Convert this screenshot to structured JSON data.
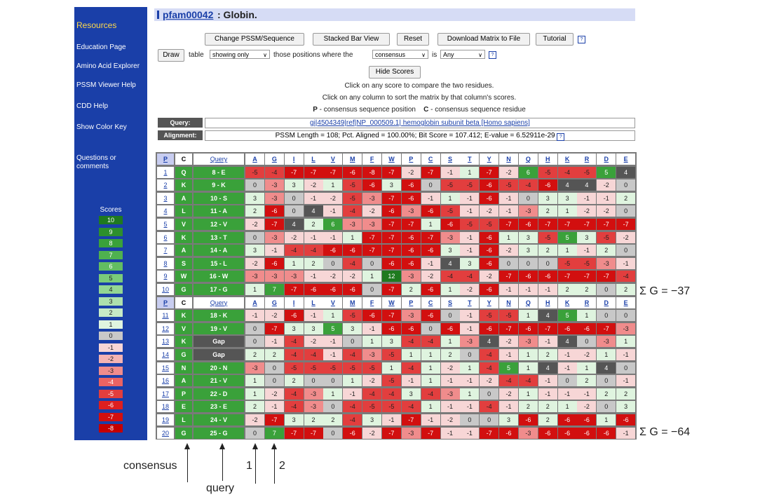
{
  "sidebar": {
    "resources": "Resources",
    "links": [
      "Education Page",
      "Amino Acid Explorer",
      "PSSM Viewer Help",
      "CDD Help",
      "Show Color Key"
    ],
    "questions": [
      "Questions or",
      "comments"
    ],
    "scores_title": "Scores",
    "scores": [
      "10",
      "9",
      "8",
      "7",
      "6",
      "5",
      "4",
      "3",
      "2",
      "1",
      "0",
      "-1",
      "-2",
      "-3",
      "-4",
      "-5",
      "-6",
      "-7",
      "-8"
    ],
    "score_colors": [
      "#1f7a1f",
      "#2d8f2d",
      "#3aa13a",
      "#4fb14f",
      "#62bd62",
      "#7acb7a",
      "#93d693",
      "#ade0ad",
      "#c6eac6",
      "#dff4df",
      "#c8c8c8",
      "#f7d6d6",
      "#f4b3b3",
      "#f08c8c",
      "#ea6363",
      "#e23e3e",
      "#dd1f1f",
      "#d20f0f",
      "#c40000"
    ]
  },
  "title": {
    "family": "pfam00042",
    "rest": ": Globin."
  },
  "toolbar": {
    "change_pssm": "Change PSSM/Sequence",
    "stacked": "Stacked Bar View",
    "reset": "Reset",
    "download": "Download Matrix to File",
    "tutorial": "Tutorial",
    "draw": "Draw",
    "table": "table",
    "showing": "showing only",
    "those_positions": "those positions where the",
    "consensus_sel": "consensus",
    "is": "is",
    "any": "Any",
    "hide_scores": "Hide Scores",
    "help_glyph": "?"
  },
  "info": {
    "line1": "Click on any score to compare the two residues.",
    "line2": "Click on any column to sort the matrix by that column's scores.",
    "p_key": "P",
    "p_text": " - consensus sequence position",
    "c_key": "C",
    "c_text": " - consensus sequence residue"
  },
  "query_row": {
    "label": "Query:",
    "link": "gi|4504349|ref|NP_000509.1| hemoglobin subunit beta [Homo sapiens]"
  },
  "alignment_row": {
    "label": "Alignment:",
    "text": "PSSM Length = 108; Pct. Aligned = 100.00%; Bit Score = 107.412; E-value = 6.52911e-29"
  },
  "matrix": {
    "p_label": "P",
    "c_label": "C",
    "query_label": "Query",
    "residues": [
      "A",
      "G",
      "I",
      "L",
      "V",
      "M",
      "F",
      "W",
      "P",
      "C",
      "S",
      "T",
      "Y",
      "N",
      "Q",
      "H",
      "K",
      "R",
      "D",
      "E"
    ],
    "rows": [
      {
        "pos": "1",
        "cons": "Q",
        "query": "8 - E",
        "scores": [
          -5,
          -4,
          -7,
          -7,
          -7,
          -6,
          -8,
          -7,
          -2,
          -7,
          -1,
          1,
          -7,
          -2,
          6,
          -5,
          -4,
          -5,
          5,
          4
        ]
      },
      {
        "pos": "2",
        "cons": "K",
        "query": "9 - K",
        "scores": [
          0,
          -3,
          3,
          -2,
          1,
          -5,
          -6,
          3,
          -6,
          0,
          -5,
          -5,
          -6,
          -5,
          -4,
          -6,
          4,
          4,
          -2,
          0
        ]
      },
      {
        "pos": "3",
        "cons": "A",
        "query": "10 - S",
        "scores": [
          3,
          -3,
          0,
          -1,
          -2,
          -5,
          -3,
          -7,
          -6,
          -1,
          1,
          -1,
          -6,
          -1,
          0,
          3,
          3,
          -1,
          -1,
          2
        ]
      },
      {
        "pos": "4",
        "cons": "L",
        "query": "11 - A",
        "scores": [
          2,
          -6,
          0,
          4,
          -1,
          -4,
          -2,
          -6,
          -3,
          -6,
          -5,
          -1,
          -2,
          -1,
          -3,
          2,
          1,
          -2,
          -2,
          0
        ]
      },
      {
        "pos": "5",
        "cons": "V",
        "query": "12 - V",
        "scores": [
          -2,
          -7,
          4,
          2,
          6,
          -3,
          -3,
          -7,
          -7,
          1,
          -6,
          -5,
          -5,
          -7,
          -6,
          -7,
          -7,
          -7,
          -7,
          -7
        ]
      },
      {
        "pos": "6",
        "cons": "K",
        "query": "13 - T",
        "scores": [
          0,
          -3,
          -2,
          -1,
          -1,
          1,
          -7,
          -7,
          -6,
          -7,
          -3,
          -1,
          -6,
          1,
          3,
          -5,
          5,
          3,
          -5,
          -2
        ]
      },
      {
        "pos": "7",
        "cons": "A",
        "query": "14 - A",
        "scores": [
          3,
          -1,
          -4,
          -4,
          -6,
          -6,
          -7,
          -7,
          -6,
          -6,
          3,
          -1,
          -6,
          -2,
          3,
          2,
          1,
          -1,
          2,
          0
        ]
      },
      {
        "pos": "8",
        "cons": "S",
        "query": "15 - L",
        "scores": [
          -2,
          -6,
          1,
          2,
          0,
          -4,
          0,
          -6,
          -6,
          -1,
          4,
          3,
          -6,
          0,
          0,
          0,
          -5,
          -5,
          -3,
          -1
        ]
      },
      {
        "pos": "9",
        "cons": "W",
        "query": "16 - W",
        "scores": [
          -3,
          -3,
          -3,
          -1,
          -2,
          -2,
          1,
          12,
          -3,
          -2,
          -4,
          -4,
          -2,
          -7,
          -6,
          -6,
          -7,
          -7,
          -7,
          -4
        ]
      },
      {
        "pos": "10",
        "cons": "G",
        "query": "17 - G",
        "scores": [
          1,
          7,
          -7,
          -6,
          -6,
          -6,
          0,
          -7,
          2,
          -6,
          1,
          -2,
          -6,
          -1,
          -1,
          -1,
          2,
          2,
          0,
          2
        ]
      },
      {
        "header": true
      },
      {
        "pos": "11",
        "cons": "K",
        "query": "18 - K",
        "scores": [
          -1,
          -2,
          -6,
          -1,
          1,
          -5,
          -6,
          -7,
          -3,
          -6,
          0,
          -1,
          -5,
          -5,
          1,
          4,
          5,
          1,
          0,
          0
        ]
      },
      {
        "pos": "12",
        "cons": "V",
        "query": "19 - V",
        "scores": [
          0,
          -7,
          3,
          3,
          5,
          3,
          -1,
          -6,
          -6,
          0,
          -6,
          -1,
          -6,
          -7,
          -6,
          -7,
          -6,
          -6,
          -7,
          -3
        ]
      },
      {
        "pos": "13",
        "cons": "K",
        "query": "Gap",
        "scores": [
          0,
          -1,
          -4,
          -2,
          -1,
          0,
          1,
          3,
          -4,
          -4,
          1,
          -3,
          4,
          -2,
          -3,
          -1,
          4,
          0,
          -3,
          1
        ]
      },
      {
        "pos": "14",
        "cons": "G",
        "query": "Gap",
        "scores": [
          2,
          2,
          -4,
          -4,
          -1,
          -4,
          -3,
          -5,
          1,
          1,
          2,
          0,
          -4,
          -1,
          1,
          2,
          -1,
          -2,
          1,
          -1
        ]
      },
      {
        "pos": "15",
        "cons": "N",
        "query": "20 - N",
        "scores": [
          -3,
          0,
          -5,
          -5,
          -5,
          -5,
          -5,
          1,
          -4,
          1,
          -2,
          1,
          -4,
          5,
          1,
          4,
          -1,
          1,
          4,
          0
        ]
      },
      {
        "pos": "16",
        "cons": "A",
        "query": "21 - V",
        "scores": [
          1,
          0,
          2,
          0,
          0,
          1,
          -2,
          -5,
          -1,
          1,
          -1,
          -1,
          -2,
          -4,
          -4,
          -1,
          0,
          2,
          0,
          -1
        ]
      },
      {
        "pos": "17",
        "cons": "P",
        "query": "22 - D",
        "scores": [
          1,
          -2,
          -4,
          -3,
          1,
          -1,
          -4,
          -4,
          3,
          -4,
          -3,
          1,
          0,
          -2,
          1,
          -1,
          -1,
          -1,
          2,
          2
        ]
      },
      {
        "pos": "18",
        "cons": "E",
        "query": "23 - E",
        "scores": [
          2,
          -1,
          -4,
          -3,
          0,
          -4,
          -5,
          -5,
          -4,
          1,
          -1,
          -1,
          -4,
          -1,
          2,
          2,
          1,
          -2,
          0,
          3
        ]
      },
      {
        "pos": "19",
        "cons": "L",
        "query": "24 - V",
        "scores": [
          -2,
          -7,
          3,
          2,
          2,
          -4,
          3,
          -1,
          -7,
          -1,
          -2,
          0,
          0,
          3,
          -6,
          2,
          -6,
          -6,
          1,
          -6
        ]
      },
      {
        "pos": "20",
        "cons": "G",
        "query": "25 - G",
        "scores": [
          0,
          7,
          -7,
          -7,
          0,
          -6,
          -2,
          -7,
          -3,
          -7,
          -1,
          -1,
          -7,
          -6,
          -3,
          -6,
          -6,
          -6,
          -6,
          -1
        ]
      }
    ]
  },
  "annotations": {
    "sum1": "Σ G = −37",
    "sum2": "Σ G = −64",
    "consensus": "consensus",
    "query": "query",
    "num1": "1",
    "num2": "2"
  }
}
